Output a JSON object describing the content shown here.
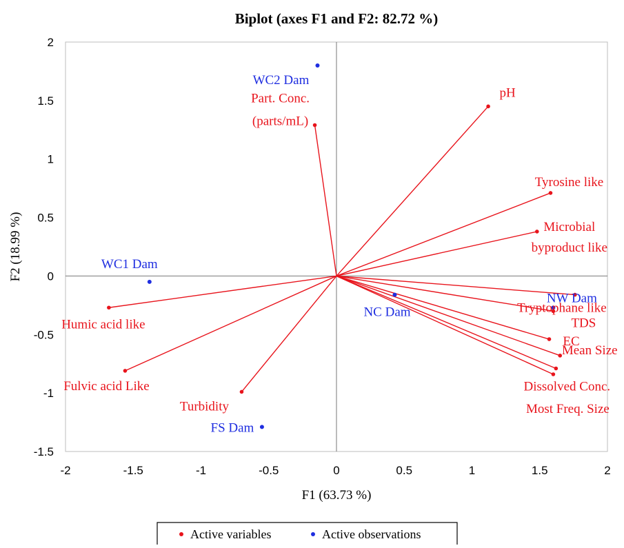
{
  "chart_data": {
    "type": "scatter",
    "title": "Biplot (axes F1 and F2: 82.72 %)",
    "xlabel": "F1 (63.73 %)",
    "ylabel": "F2 (18.99 %)",
    "xlim": [
      -2,
      2
    ],
    "ylim": [
      -1.5,
      2
    ],
    "x_ticks": [
      "-2",
      "-1.5",
      "-1",
      "-0.5",
      "0",
      "0.5",
      "1",
      "1.5",
      "2"
    ],
    "y_ticks": [
      "-1.5",
      "-1",
      "-0.5",
      "0",
      "0.5",
      "1",
      "1.5",
      "2"
    ],
    "grid": false,
    "legend_position": "bottom",
    "colors": {
      "variables": "#e8141c",
      "observations": "#1f2ee0"
    },
    "series": [
      {
        "name": "Active variables",
        "color": "#e8141c",
        "style": "vectors",
        "points": [
          {
            "label": "pH",
            "x": 1.12,
            "y": 1.45
          },
          {
            "label": "Tyrosine like",
            "x": 1.58,
            "y": 0.71
          },
          {
            "label": "Microbial byproduct like",
            "x": 1.48,
            "y": 0.38
          },
          {
            "label": "Tryptophane like",
            "x": 1.76,
            "y": -0.16
          },
          {
            "label": "TDS",
            "x": 1.6,
            "y": -0.3
          },
          {
            "label": "EC",
            "x": 1.57,
            "y": -0.54
          },
          {
            "label": "Mean Size",
            "x": 1.65,
            "y": -0.68
          },
          {
            "label": "Dissolved Conc.",
            "x": 1.62,
            "y": -0.79
          },
          {
            "label": "Most Freq. Size",
            "x": 1.6,
            "y": -0.84
          },
          {
            "label": "Part. Conc. (parts/mL)",
            "x": -0.16,
            "y": 1.29
          },
          {
            "label": "Humic acid like",
            "x": -1.68,
            "y": -0.27
          },
          {
            "label": "Fulvic acid Like",
            "x": -1.56,
            "y": -0.81
          },
          {
            "label": "Turbidity",
            "x": -0.7,
            "y": -0.99
          }
        ]
      },
      {
        "name": "Active observations",
        "color": "#1f2ee0",
        "style": "points",
        "points": [
          {
            "label": "WC2 Dam",
            "x": -0.14,
            "y": 1.8
          },
          {
            "label": "WC1 Dam",
            "x": -1.38,
            "y": -0.05
          },
          {
            "label": "NW Dam",
            "x": 1.6,
            "y": -0.27
          },
          {
            "label": "NC Dam",
            "x": 0.43,
            "y": -0.16
          },
          {
            "label": "FS Dam",
            "x": -0.55,
            "y": -1.29
          }
        ]
      }
    ]
  }
}
